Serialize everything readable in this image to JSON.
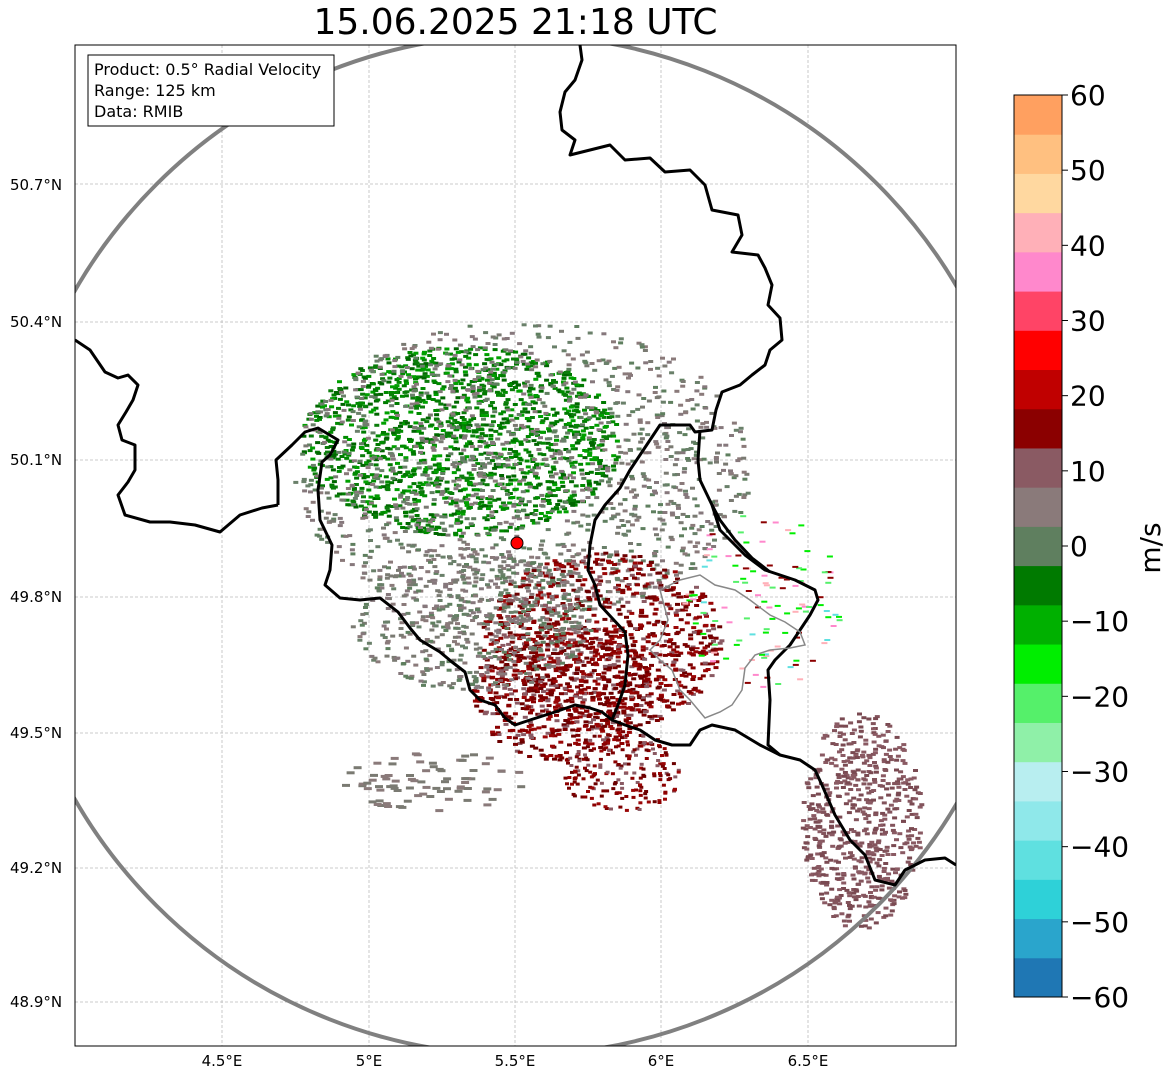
{
  "title": "15.06.2025 21:18 UTC",
  "info_box": {
    "product": "Product: 0.5° Radial Velocity",
    "range": "Range: 125 km",
    "data": "Data: RMIB"
  },
  "axes": {
    "lon_ticks": [
      "4.5°E",
      "5°E",
      "5.5°E",
      "6°E",
      "6.5°E"
    ],
    "lat_ticks": [
      "50.7°N",
      "50.4°N",
      "50.1°N",
      "49.8°N",
      "49.5°N",
      "49.2°N",
      "48.9°N"
    ]
  },
  "radar_site": {
    "lon": 5.505,
    "lat": 49.915,
    "color": "#ff0000"
  },
  "colorbar": {
    "unit": "m/s",
    "tick_labels": [
      "60",
      "50",
      "40",
      "30",
      "20",
      "10",
      "0",
      "−10",
      "−20",
      "−30",
      "−40",
      "−50",
      "−60"
    ],
    "colors": [
      "#1f77b4",
      "#2aa5cc",
      "#2ed1d8",
      "#5fe0e0",
      "#8fe8ea",
      "#b8eef0",
      "#8ff0a8",
      "#55f06a",
      "#00ee00",
      "#00b000",
      "#007a00",
      "#5f7f5f",
      "#8a7a7a",
      "#8a5a63",
      "#8b0000",
      "#c00000",
      "#ff0000",
      "#ff4466",
      "#ff88cc",
      "#ffb0b8",
      "#ffd8a0",
      "#ffc080",
      "#ffa060"
    ]
  },
  "map_extent": {
    "lon": [
      4.0,
      7.0
    ],
    "lat": [
      48.8,
      51.0
    ]
  },
  "features": {
    "borders": "black national borders",
    "range_ring": "grey range ring",
    "gridlines": "dashed light-grey"
  }
}
